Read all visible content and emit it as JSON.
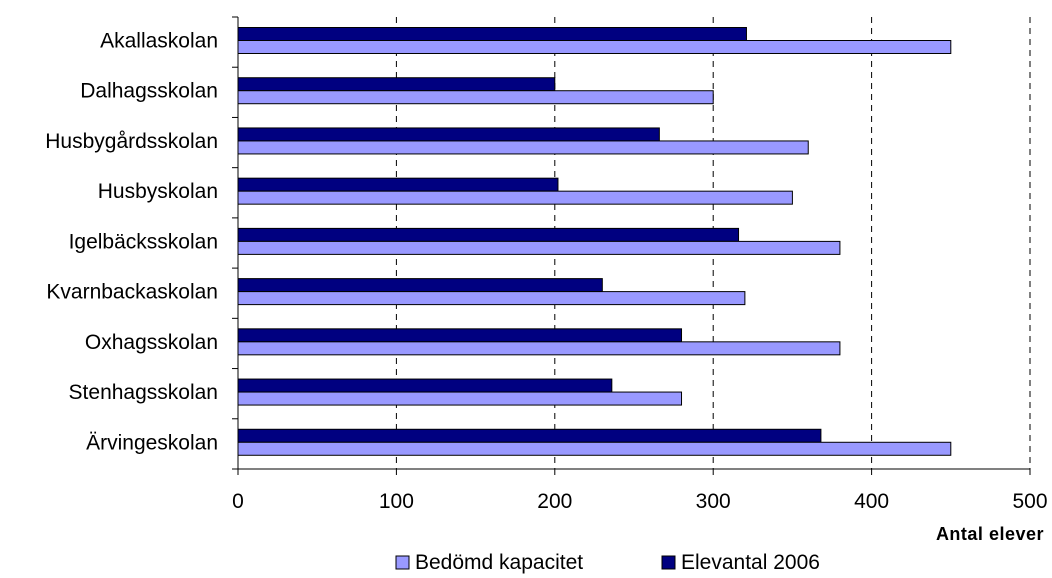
{
  "chart_data": {
    "type": "bar",
    "orientation": "horizontal",
    "categories": [
      "Akallaskolan",
      "Dalhagsskolan",
      "Husbygårdsskolan",
      "Husbyskolan",
      "Igelbäcksskolan",
      "Kvarnbackaskolan",
      "Oxhagsskolan",
      "Stenhagsskolan",
      "Ärvingeskolan"
    ],
    "series": [
      {
        "name": "Elevantal 2006",
        "color": "#000080",
        "values": [
          321,
          200,
          266,
          202,
          316,
          230,
          280,
          236,
          368
        ]
      },
      {
        "name": "Bedömd kapacitet",
        "color": "#9999FF",
        "values": [
          450,
          300,
          360,
          350,
          380,
          320,
          380,
          280,
          450
        ]
      }
    ],
    "xlabel": "Antal elever",
    "xlim": [
      0,
      500
    ],
    "xticks": [
      0,
      100,
      200,
      300,
      400,
      500
    ],
    "grid": "vertical dashed",
    "legend": {
      "placement": "bottom",
      "entries": [
        {
          "label": "Bedömd kapacitet",
          "color": "#9999FF"
        },
        {
          "label": "Elevantal 2006",
          "color": "#000080"
        }
      ]
    }
  }
}
